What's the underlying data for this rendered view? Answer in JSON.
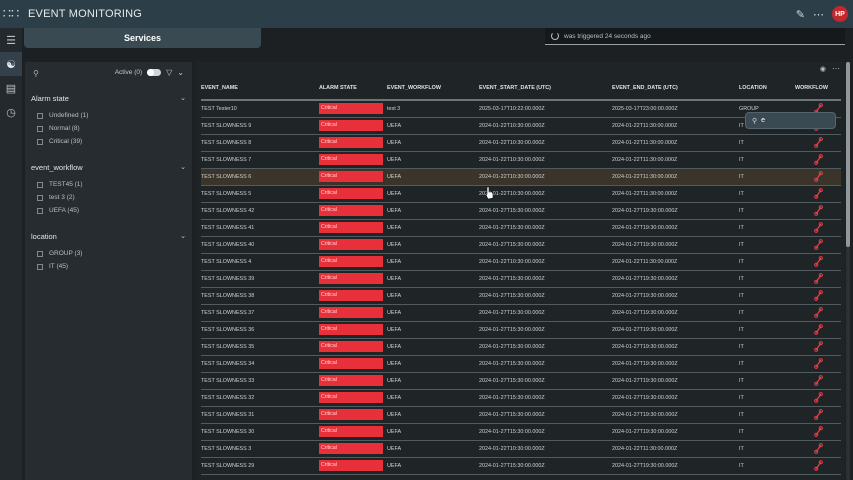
{
  "app": {
    "title": "EVENT MONITORING",
    "avatar_initials": "HP"
  },
  "colors": {
    "topbar": "#2c3e48",
    "critical": "#e8303b",
    "workflow_icon": "#e3404a"
  },
  "header": {
    "services_label": "Services",
    "notice": "was triggered 24 seconds ago"
  },
  "filters": {
    "active_label": "Active (0)",
    "sections": [
      {
        "title": "Alarm state",
        "options": [
          "Undefined (1)",
          "Normal (8)",
          "Critical (39)"
        ]
      },
      {
        "title": "event_workflow",
        "options": [
          "TEST45 (1)",
          "test 3 (2)",
          "UEFA (45)"
        ]
      },
      {
        "title": "location",
        "options": [
          "GROUP (3)",
          "IT (45)"
        ]
      }
    ]
  },
  "search_popup": {
    "value": "e"
  },
  "table": {
    "columns": [
      "EVENT_NAME",
      "ALARM STATE",
      "EVENT_WORKFLOW",
      "EVENT_START_DATE (UTC)",
      "EVENT_END_DATE (UTC)",
      "LOCATION",
      "WORKFLOW"
    ],
    "rows": [
      [
        "TEST Tester10",
        "Critical",
        "test 3",
        "2025-03-17T10:22:00.000Z",
        "2025-03-17T23:00:00.000Z",
        "GROUP"
      ],
      [
        "TEST SLOWNESS 9",
        "Critical",
        "UEFA",
        "2024-01-22T10:30:00.000Z",
        "2024-01-22T11:30:00.000Z",
        "IT"
      ],
      [
        "TEST SLOWNESS 8",
        "Critical",
        "UEFA",
        "2024-01-22T10:30:00.000Z",
        "2024-01-22T11:30:00.000Z",
        "IT"
      ],
      [
        "TEST SLOWNESS 7",
        "Critical",
        "UEFA",
        "2024-01-22T10:30:00.000Z",
        "2024-01-22T11:30:00.000Z",
        "IT"
      ],
      [
        "TEST SLOWNESS 6",
        "Critical",
        "UEFA",
        "2024-01-22T10:30:00.000Z",
        "2024-01-22T11:30:00.000Z",
        "IT"
      ],
      [
        "TEST SLOWNESS 5",
        "Critical",
        "UEFA",
        "2024-01-22T10:30:00.000Z",
        "2024-01-22T11:30:00.000Z",
        "IT"
      ],
      [
        "TEST SLOWNESS 42",
        "Critical",
        "UEFA",
        "2024-01-27T15:30:00.000Z",
        "2024-01-27T19:30:00.000Z",
        "IT"
      ],
      [
        "TEST SLOWNESS 41",
        "Critical",
        "UEFA",
        "2024-01-27T15:30:00.000Z",
        "2024-01-27T19:30:00.000Z",
        "IT"
      ],
      [
        "TEST SLOWNESS 40",
        "Critical",
        "UEFA",
        "2024-01-27T15:30:00.000Z",
        "2024-01-27T19:30:00.000Z",
        "IT"
      ],
      [
        "TEST SLOWNESS 4",
        "Critical",
        "UEFA",
        "2024-01-22T10:30:00.000Z",
        "2024-01-22T11:30:00.000Z",
        "IT"
      ],
      [
        "TEST SLOWNESS 39",
        "Critical",
        "UEFA",
        "2024-01-27T15:30:00.000Z",
        "2024-01-27T19:30:00.000Z",
        "IT"
      ],
      [
        "TEST SLOWNESS 38",
        "Critical",
        "UEFA",
        "2024-01-27T15:30:00.000Z",
        "2024-01-27T19:30:00.000Z",
        "IT"
      ],
      [
        "TEST SLOWNESS 37",
        "Critical",
        "UEFA",
        "2024-01-27T15:30:00.000Z",
        "2024-01-27T19:30:00.000Z",
        "IT"
      ],
      [
        "TEST SLOWNESS 36",
        "Critical",
        "UEFA",
        "2024-01-27T15:30:00.000Z",
        "2024-01-27T19:30:00.000Z",
        "IT"
      ],
      [
        "TEST SLOWNESS 35",
        "Critical",
        "UEFA",
        "2024-01-27T15:30:00.000Z",
        "2024-01-27T19:30:00.000Z",
        "IT"
      ],
      [
        "TEST SLOWNESS 34",
        "Critical",
        "UEFA",
        "2024-01-27T15:30:00.000Z",
        "2024-01-27T19:30:00.000Z",
        "IT"
      ],
      [
        "TEST SLOWNESS 33",
        "Critical",
        "UEFA",
        "2024-01-27T15:30:00.000Z",
        "2024-01-27T19:30:00.000Z",
        "IT"
      ],
      [
        "TEST SLOWNESS 32",
        "Critical",
        "UEFA",
        "2024-01-27T15:30:00.000Z",
        "2024-01-27T19:30:00.000Z",
        "IT"
      ],
      [
        "TEST SLOWNESS 31",
        "Critical",
        "UEFA",
        "2024-01-27T15:30:00.000Z",
        "2024-01-27T19:30:00.000Z",
        "IT"
      ],
      [
        "TEST SLOWNESS 30",
        "Critical",
        "UEFA",
        "2024-01-27T15:30:00.000Z",
        "2024-01-27T19:30:00.000Z",
        "IT"
      ],
      [
        "TEST SLOWNESS 3",
        "Critical",
        "UEFA",
        "2024-01-22T10:30:00.000Z",
        "2024-01-22T11:30:00.000Z",
        "IT"
      ],
      [
        "TEST SLOWNESS 29",
        "Critical",
        "UEFA",
        "2024-01-27T15:30:00.000Z",
        "2024-01-27T19:30:00.000Z",
        "IT"
      ]
    ]
  }
}
